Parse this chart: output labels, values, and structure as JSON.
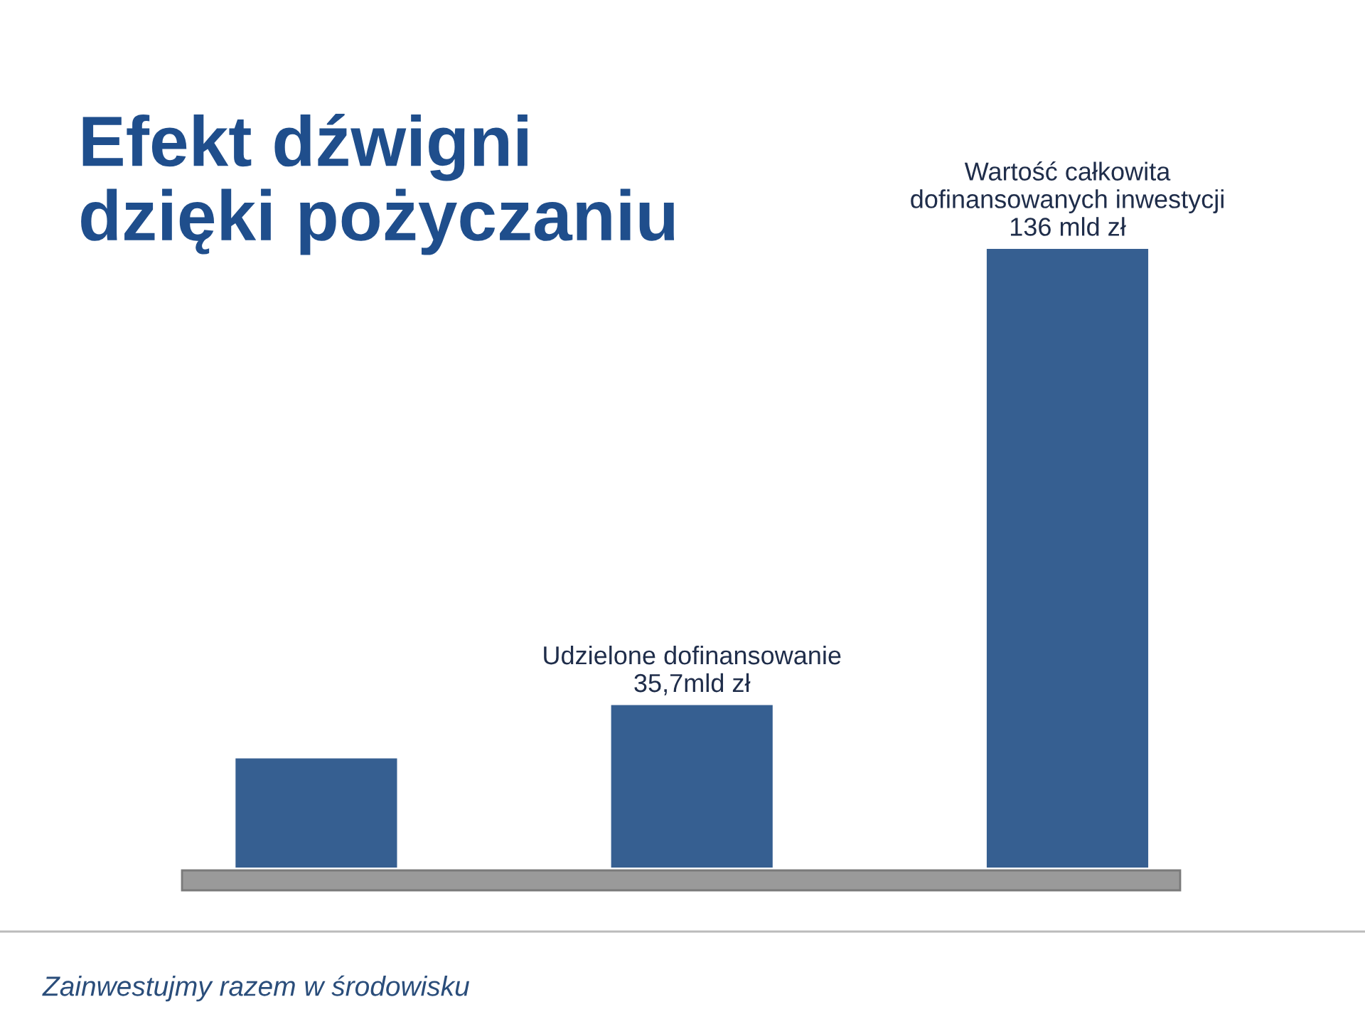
{
  "chart_data": {
    "type": "bar",
    "title": "Efekt dźwigni\ndzięki pożyczaniu",
    "categories": [
      null,
      null,
      null
    ],
    "values": [
      24,
      35.7,
      136
    ],
    "color": "#365f91",
    "value_labels": [
      null,
      "Udzielone dofinansowanie\n35,7mld zł",
      "Wartość całkowita\ndofinansowanych inwestycji\n136 mld zł"
    ],
    "tick_labels": false,
    "grid": false,
    "legend": false,
    "annotations": [
      "Zainwestujmy razem w środowisku"
    ]
  }
}
